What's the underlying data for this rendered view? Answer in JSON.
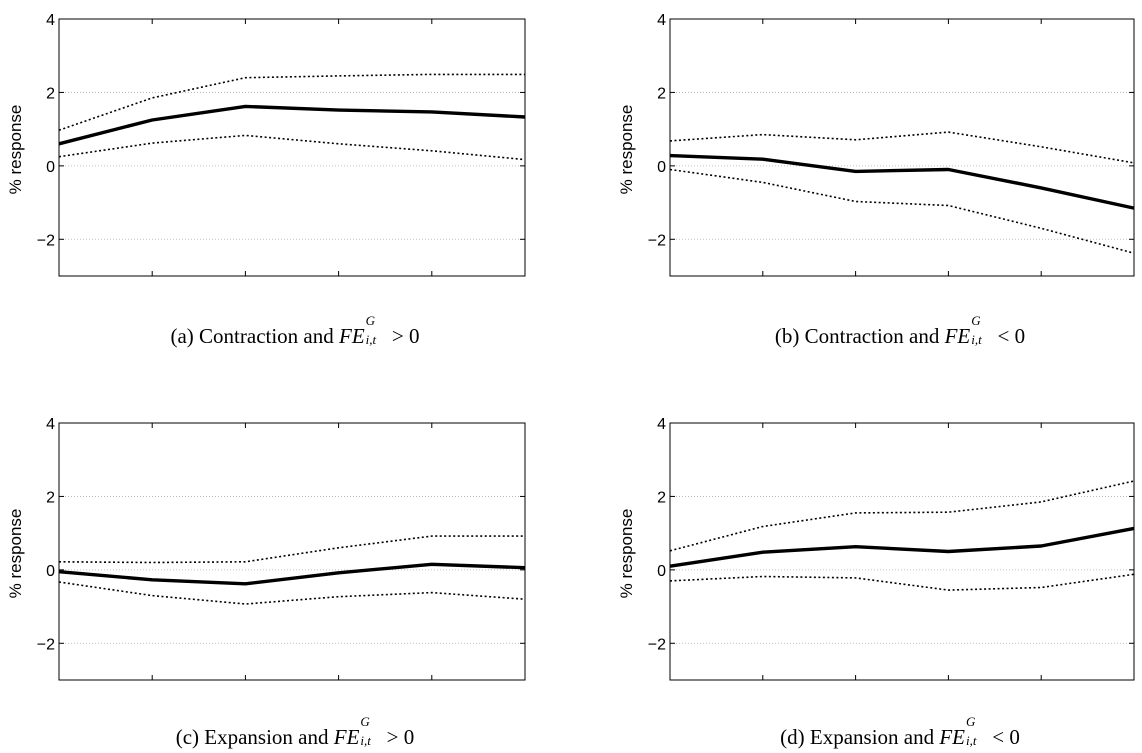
{
  "chart_data": [
    {
      "type": "line",
      "ylabel": "% response",
      "caption": {
        "prefix": "(a) Contraction and",
        "sup": "G",
        "sub": "i,t",
        "relation": "> 0"
      },
      "x": [
        0,
        1,
        2,
        3,
        4,
        5
      ],
      "xticks": [
        "0",
        "1",
        "2",
        "3",
        "4",
        "5"
      ],
      "yticks": [
        "−2",
        "0",
        "2",
        "4"
      ],
      "ytick_values": [
        -2,
        0,
        2,
        4
      ],
      "xlim": [
        0,
        5
      ],
      "ylim": [
        -3,
        4
      ],
      "grid": "horizontal dotted",
      "series": [
        {
          "style": "solid-thick",
          "values": [
            0.6,
            1.25,
            1.62,
            1.52,
            1.47,
            1.33
          ]
        },
        {
          "style": "dotted",
          "values": [
            0.97,
            1.85,
            2.4,
            2.45,
            2.49,
            2.49
          ]
        },
        {
          "style": "dotted",
          "values": [
            0.25,
            0.62,
            0.83,
            0.6,
            0.41,
            0.17
          ]
        }
      ]
    },
    {
      "type": "line",
      "ylabel": "% response",
      "caption": {
        "prefix": "(b) Contraction and",
        "sup": "G",
        "sub": "i,t",
        "relation": "< 0"
      },
      "x": [
        0,
        1,
        2,
        3,
        4,
        5
      ],
      "xticks": [
        "0",
        "1",
        "2",
        "3",
        "4",
        "5"
      ],
      "yticks": [
        "−2",
        "0",
        "2",
        "4"
      ],
      "ytick_values": [
        -2,
        0,
        2,
        4
      ],
      "xlim": [
        0,
        5
      ],
      "ylim": [
        -3,
        4
      ],
      "grid": "horizontal dotted",
      "series": [
        {
          "style": "solid-thick",
          "values": [
            0.28,
            0.18,
            -0.15,
            -0.1,
            -0.6,
            -1.15
          ]
        },
        {
          "style": "dotted",
          "values": [
            0.68,
            0.85,
            0.71,
            0.92,
            0.52,
            0.08
          ]
        },
        {
          "style": "dotted",
          "values": [
            -0.1,
            -0.45,
            -0.97,
            -1.08,
            -1.7,
            -2.38
          ]
        }
      ]
    },
    {
      "type": "line",
      "ylabel": "% response",
      "caption": {
        "prefix": "(c) Expansion and",
        "sup": "G",
        "sub": "i,t",
        "relation": "> 0"
      },
      "x": [
        0,
        1,
        2,
        3,
        4,
        5
      ],
      "xticks": [
        "0",
        "1",
        "2",
        "3",
        "4",
        "5"
      ],
      "yticks": [
        "−2",
        "0",
        "2",
        "4"
      ],
      "ytick_values": [
        -2,
        0,
        2,
        4
      ],
      "xlim": [
        0,
        5
      ],
      "ylim": [
        -3,
        4
      ],
      "grid": "horizontal dotted",
      "series": [
        {
          "style": "solid-thick",
          "values": [
            -0.05,
            -0.27,
            -0.38,
            -0.08,
            0.15,
            0.06
          ]
        },
        {
          "style": "dotted",
          "values": [
            0.22,
            0.2,
            0.22,
            0.6,
            0.92,
            0.92
          ]
        },
        {
          "style": "dotted",
          "values": [
            -0.33,
            -0.7,
            -0.93,
            -0.73,
            -0.62,
            -0.8
          ]
        }
      ]
    },
    {
      "type": "line",
      "ylabel": "% response",
      "caption": {
        "prefix": "(d) Expansion and",
        "sup": "G",
        "sub": "i,t",
        "relation": "< 0"
      },
      "x": [
        0,
        1,
        2,
        3,
        4,
        5
      ],
      "xticks": [
        "0",
        "1",
        "2",
        "3",
        "4",
        "5"
      ],
      "yticks": [
        "−2",
        "0",
        "2",
        "4"
      ],
      "ytick_values": [
        -2,
        0,
        2,
        4
      ],
      "xlim": [
        0,
        5
      ],
      "ylim": [
        -3,
        4
      ],
      "grid": "horizontal dotted",
      "series": [
        {
          "style": "solid-thick",
          "values": [
            0.1,
            0.48,
            0.63,
            0.5,
            0.65,
            1.13
          ]
        },
        {
          "style": "dotted",
          "values": [
            0.52,
            1.18,
            1.55,
            1.57,
            1.85,
            2.42
          ]
        },
        {
          "style": "dotted",
          "values": [
            -0.3,
            -0.18,
            -0.22,
            -0.55,
            -0.48,
            -0.12
          ]
        }
      ]
    }
  ]
}
